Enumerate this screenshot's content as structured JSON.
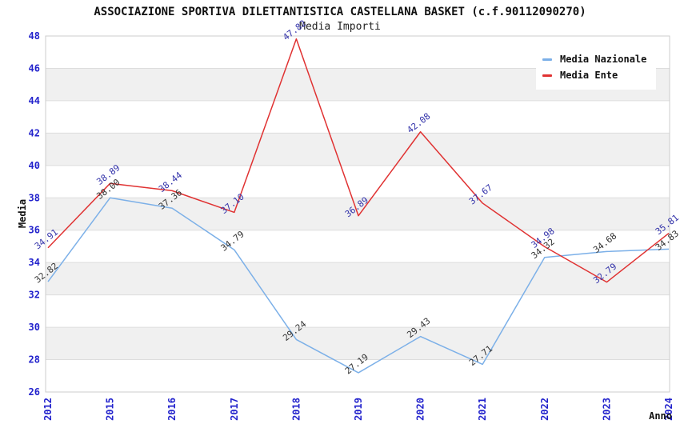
{
  "chart_data": {
    "type": "line",
    "title": "ASSOCIAZIONE SPORTIVA DILETTANTISTICA CASTELLANA BASKET (c.f.90112090270)",
    "subtitle": "Media Importi",
    "xlabel": "Anno",
    "ylabel": "Media",
    "categories": [
      "2012",
      "2015",
      "2016",
      "2017",
      "2018",
      "2019",
      "2020",
      "2021",
      "2022",
      "2023",
      "2024"
    ],
    "series": [
      {
        "name": "Media Nazionale",
        "color": "#7CB0E8",
        "label_color": "#333333",
        "values": [
          32.82,
          38.0,
          37.36,
          34.79,
          29.24,
          27.19,
          29.43,
          27.71,
          34.32,
          34.68,
          34.83
        ]
      },
      {
        "name": "Media Ente",
        "color": "#E03232",
        "label_color": "#3333AA",
        "values": [
          34.91,
          38.89,
          38.44,
          37.1,
          47.82,
          36.89,
          42.08,
          37.67,
          34.98,
          32.79,
          35.81
        ]
      }
    ],
    "ylim": [
      26,
      48
    ],
    "yticks": [
      26,
      28,
      30,
      32,
      34,
      36,
      38,
      40,
      42,
      44,
      46,
      48
    ],
    "value_decimals": 2,
    "grid": true,
    "legend_position": "top-right",
    "band_colors": [
      "#ffffff",
      "#f0f0f0"
    ],
    "gridline_color": "#dddddd",
    "border_color": "#cccccc",
    "tick_color": "#2222CC"
  }
}
